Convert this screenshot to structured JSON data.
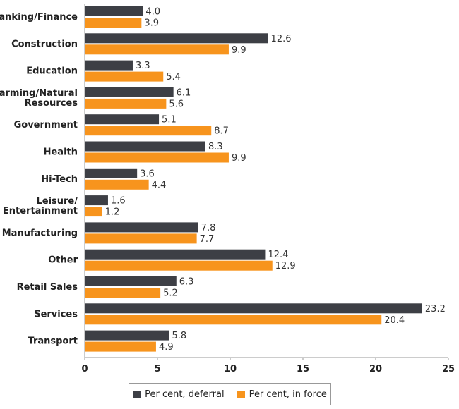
{
  "chart_data": {
    "type": "bar",
    "orientation": "horizontal",
    "categories": [
      [
        "Banking/Finance"
      ],
      [
        "Construction"
      ],
      [
        "Education"
      ],
      [
        "Farming/Natural",
        "Resources"
      ],
      [
        "Government"
      ],
      [
        "Health"
      ],
      [
        "Hi-Tech"
      ],
      [
        "Leisure/",
        "Entertainment"
      ],
      [
        "Manufacturing"
      ],
      [
        "Other"
      ],
      [
        "Retail Sales"
      ],
      [
        "Services"
      ],
      [
        "Transport"
      ]
    ],
    "series": [
      {
        "name": "Per cent, deferral",
        "color": "#3d3f45",
        "values": [
          4.0,
          12.6,
          3.3,
          6.1,
          5.1,
          8.3,
          3.6,
          1.6,
          7.8,
          12.4,
          6.3,
          23.2,
          5.8
        ]
      },
      {
        "name": "Per cent, in force",
        "color": "#f7941d",
        "values": [
          3.9,
          9.9,
          5.4,
          5.6,
          8.7,
          9.9,
          4.4,
          1.2,
          7.7,
          12.9,
          5.2,
          20.4,
          4.9
        ]
      }
    ],
    "xlim": [
      0,
      25
    ],
    "xticks": [
      0,
      5,
      10,
      15,
      20,
      25
    ],
    "grid": false,
    "legend": "bottom"
  }
}
